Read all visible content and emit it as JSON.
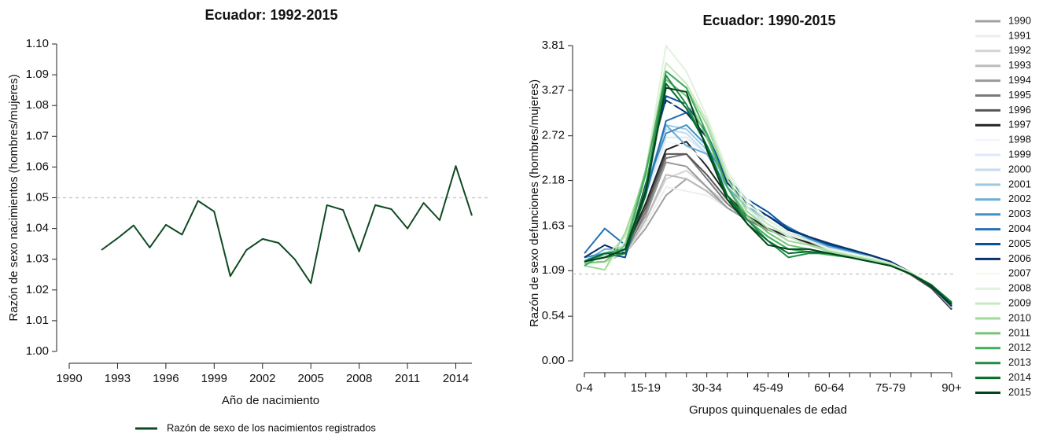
{
  "chart_data": [
    {
      "type": "line",
      "title": "Ecuador: 1992-2015",
      "x_label": "Año de nacimiento",
      "y_label": "Razón de sexo nacimientos (hombres/mujeres)",
      "x": [
        1992,
        1993,
        1994,
        1995,
        1996,
        1997,
        1998,
        1999,
        2000,
        2001,
        2002,
        2003,
        2004,
        2005,
        2006,
        2007,
        2008,
        2009,
        2010,
        2011,
        2012,
        2013,
        2014,
        2015
      ],
      "series": [
        {
          "name": "Razón de sexo de los nacimientos registrados",
          "color": "#0e4a22",
          "values": [
            1.033,
            1.0368,
            1.041,
            1.0338,
            1.0412,
            1.038,
            1.049,
            1.0455,
            1.0245,
            1.033,
            1.0366,
            1.0353,
            1.03,
            1.0222,
            1.0476,
            1.046,
            1.0325,
            1.0476,
            1.0463,
            1.04,
            1.0483,
            1.0427,
            1.0603,
            1.0442
          ]
        }
      ],
      "xlim": [
        1990,
        2015
      ],
      "xticks": [
        1990,
        1993,
        1996,
        1999,
        2002,
        2005,
        2008,
        2011,
        2014
      ],
      "ylim": [
        1,
        1.1
      ],
      "yticks": [
        {
          "value": 1,
          "label": "1.00"
        },
        1.01,
        1.02,
        1.03,
        1.04,
        1.05,
        1.06,
        1.07,
        1.08,
        1.09,
        {
          "value": 1.1,
          "label": "1.10"
        }
      ],
      "reference_line": 1.05,
      "legend": "bottom"
    },
    {
      "type": "line",
      "title": "Ecuador: 1990-2015",
      "x_label": "Grupos quinquenales de edad",
      "y_label": "Razón de sexo defunciones (hombres/mujeres)",
      "categories": [
        "0-4",
        null,
        null,
        "15-19",
        null,
        null,
        "30-34",
        null,
        null,
        "45-49",
        null,
        null,
        "60-64",
        null,
        null,
        "75-79",
        null,
        null,
        "90+"
      ],
      "ylim": [
        0,
        3.81
      ],
      "yticks": [
        {
          "value": 0,
          "label": "0.00"
        },
        0.54,
        1.09,
        1.63,
        2.18,
        2.72,
        3.27,
        3.81
      ],
      "reference_line": 1.05,
      "legend": "right",
      "series": [
        {
          "name": "1990",
          "color": "#a0a0a0",
          "values": [
            1.2,
            1.25,
            1.3,
            1.6,
            2.0,
            2.2,
            2.05,
            1.85,
            1.7,
            1.6,
            1.5,
            1.45,
            1.38,
            1.3,
            1.25,
            1.18,
            1.05,
            0.88,
            0.62
          ]
        },
        {
          "name": "1991",
          "color": "#eeeeee",
          "values": [
            1.15,
            1.2,
            1.3,
            1.65,
            2.1,
            2.05,
            2.0,
            1.85,
            1.7,
            1.6,
            1.5,
            1.42,
            1.35,
            1.3,
            1.25,
            1.18,
            1.05,
            0.88,
            0.63
          ]
        },
        {
          "name": "1992",
          "color": "#d4d4d4",
          "values": [
            1.2,
            1.25,
            1.35,
            1.7,
            2.2,
            2.3,
            2.1,
            1.9,
            1.72,
            1.6,
            1.5,
            1.42,
            1.36,
            1.3,
            1.24,
            1.17,
            1.05,
            0.9,
            0.65
          ]
        },
        {
          "name": "1993",
          "color": "#bbbbbb",
          "values": [
            1.18,
            1.2,
            1.3,
            1.7,
            2.25,
            2.2,
            2.05,
            1.85,
            1.7,
            1.58,
            1.5,
            1.44,
            1.36,
            1.3,
            1.25,
            1.16,
            1.04,
            0.88,
            0.62
          ]
        },
        {
          "name": "1994",
          "color": "#999999",
          "values": [
            1.2,
            1.25,
            1.35,
            1.75,
            2.4,
            2.35,
            2.1,
            1.85,
            1.7,
            1.58,
            1.5,
            1.42,
            1.35,
            1.3,
            1.24,
            1.16,
            1.04,
            0.88,
            0.64
          ]
        },
        {
          "name": "1995",
          "color": "#7a7a7a",
          "values": [
            1.2,
            1.25,
            1.3,
            1.8,
            2.45,
            2.5,
            2.2,
            1.9,
            1.7,
            1.6,
            1.5,
            1.42,
            1.36,
            1.3,
            1.24,
            1.18,
            1.05,
            0.88,
            0.63
          ]
        },
        {
          "name": "1996",
          "color": "#555555",
          "values": [
            1.22,
            1.28,
            1.35,
            1.85,
            2.5,
            2.5,
            2.25,
            1.95,
            1.75,
            1.6,
            1.5,
            1.45,
            1.38,
            1.3,
            1.25,
            1.18,
            1.04,
            0.88,
            0.62
          ]
        },
        {
          "name": "1997",
          "color": "#222222",
          "values": [
            1.2,
            1.25,
            1.35,
            1.9,
            2.55,
            2.65,
            2.35,
            2.0,
            1.75,
            1.6,
            1.5,
            1.43,
            1.37,
            1.3,
            1.25,
            1.17,
            1.05,
            0.89,
            0.63
          ]
        },
        {
          "name": "1998",
          "color": "#f2f7fd",
          "values": [
            1.2,
            1.3,
            1.4,
            1.95,
            2.65,
            2.6,
            2.4,
            2.05,
            1.8,
            1.65,
            1.52,
            1.45,
            1.37,
            1.3,
            1.25,
            1.18,
            1.05,
            0.9,
            0.65
          ]
        },
        {
          "name": "1999",
          "color": "#dde9f6",
          "values": [
            1.22,
            1.3,
            1.4,
            2.0,
            2.7,
            2.7,
            2.5,
            2.1,
            1.8,
            1.65,
            1.52,
            1.45,
            1.37,
            1.3,
            1.25,
            1.18,
            1.05,
            0.9,
            0.64
          ]
        },
        {
          "name": "2000",
          "color": "#c6dbef",
          "values": [
            1.2,
            1.28,
            1.35,
            2.0,
            2.8,
            2.75,
            2.5,
            2.1,
            1.85,
            1.7,
            1.55,
            1.45,
            1.38,
            1.32,
            1.26,
            1.18,
            1.05,
            0.9,
            0.65
          ]
        },
        {
          "name": "2001",
          "color": "#9ecae1",
          "values": [
            1.25,
            1.3,
            1.4,
            2.1,
            2.85,
            2.8,
            2.55,
            2.1,
            1.85,
            1.7,
            1.55,
            1.47,
            1.38,
            1.32,
            1.25,
            1.2,
            1.06,
            0.9,
            0.66
          ]
        },
        {
          "name": "2002",
          "color": "#6baed6",
          "values": [
            1.2,
            1.35,
            1.35,
            2.05,
            2.85,
            2.6,
            2.5,
            2.1,
            1.85,
            1.75,
            1.6,
            1.48,
            1.38,
            1.33,
            1.26,
            1.2,
            1.06,
            0.9,
            0.66
          ]
        },
        {
          "name": "2003",
          "color": "#4292c6",
          "values": [
            1.25,
            1.3,
            1.3,
            2.1,
            2.75,
            2.85,
            2.6,
            2.15,
            1.9,
            1.75,
            1.62,
            1.48,
            1.4,
            1.33,
            1.28,
            1.2,
            1.06,
            0.9,
            0.66
          ]
        },
        {
          "name": "2004",
          "color": "#2171b5",
          "values": [
            1.3,
            1.6,
            1.4,
            2.0,
            2.9,
            3.0,
            2.7,
            2.15,
            1.9,
            1.75,
            1.6,
            1.5,
            1.4,
            1.34,
            1.28,
            1.2,
            1.06,
            0.9,
            0.67
          ]
        },
        {
          "name": "2005",
          "color": "#08519c",
          "values": [
            1.2,
            1.3,
            1.25,
            2.1,
            3.2,
            3.1,
            2.75,
            2.2,
            1.95,
            1.8,
            1.6,
            1.5,
            1.4,
            1.35,
            1.28,
            1.2,
            1.06,
            0.9,
            0.66
          ]
        },
        {
          "name": "2006",
          "color": "#08306b",
          "values": [
            1.25,
            1.4,
            1.3,
            2.15,
            3.15,
            3.0,
            2.7,
            2.15,
            1.9,
            1.75,
            1.58,
            1.5,
            1.42,
            1.35,
            1.28,
            1.2,
            1.07,
            0.9,
            0.66
          ]
        },
        {
          "name": "2007",
          "color": "#f5fbf3",
          "values": [
            1.15,
            1.2,
            1.35,
            2.2,
            3.1,
            3.1,
            2.9,
            2.3,
            1.95,
            1.7,
            1.55,
            1.45,
            1.35,
            1.3,
            1.25,
            1.18,
            1.07,
            0.92,
            0.68
          ]
        },
        {
          "name": "2008",
          "color": "#e0f3db",
          "values": [
            1.15,
            1.1,
            1.45,
            2.3,
            3.81,
            3.5,
            2.95,
            2.3,
            1.9,
            1.7,
            1.55,
            1.45,
            1.35,
            1.28,
            1.24,
            1.18,
            1.07,
            0.92,
            0.7
          ]
        },
        {
          "name": "2009",
          "color": "#c7e9c0",
          "values": [
            1.2,
            1.25,
            1.5,
            2.3,
            3.6,
            3.35,
            2.9,
            2.25,
            1.85,
            1.65,
            1.5,
            1.4,
            1.33,
            1.28,
            1.23,
            1.17,
            1.06,
            0.92,
            0.7
          ]
        },
        {
          "name": "2010",
          "color": "#a1d99b",
          "values": [
            1.15,
            1.1,
            1.55,
            2.25,
            3.5,
            3.3,
            2.85,
            2.2,
            1.8,
            1.6,
            1.45,
            1.4,
            1.32,
            1.27,
            1.22,
            1.16,
            1.06,
            0.92,
            0.71
          ]
        },
        {
          "name": "2011",
          "color": "#74c476",
          "values": [
            1.18,
            1.2,
            1.4,
            2.3,
            3.4,
            3.2,
            2.7,
            2.1,
            1.75,
            1.55,
            1.4,
            1.35,
            1.3,
            1.25,
            1.2,
            1.15,
            1.05,
            0.92,
            0.7
          ]
        },
        {
          "name": "2012",
          "color": "#41ab5d",
          "values": [
            1.15,
            1.3,
            1.35,
            2.25,
            3.5,
            3.3,
            2.75,
            2.1,
            1.7,
            1.5,
            1.35,
            1.32,
            1.28,
            1.25,
            1.2,
            1.15,
            1.05,
            0.92,
            0.7
          ]
        },
        {
          "name": "2013",
          "color": "#238b45",
          "values": [
            1.2,
            1.25,
            1.3,
            2.1,
            3.45,
            3.1,
            2.6,
            2.0,
            1.7,
            1.45,
            1.25,
            1.3,
            1.3,
            1.25,
            1.2,
            1.15,
            1.05,
            0.92,
            0.71
          ]
        },
        {
          "name": "2014",
          "color": "#006d2c",
          "values": [
            1.2,
            1.3,
            1.3,
            2.0,
            3.35,
            3.05,
            2.6,
            2.0,
            1.65,
            1.45,
            1.3,
            1.32,
            1.3,
            1.25,
            1.2,
            1.15,
            1.05,
            0.92,
            0.69
          ]
        },
        {
          "name": "2015",
          "color": "#00441b",
          "values": [
            1.2,
            1.25,
            1.35,
            2.05,
            3.3,
            3.25,
            2.55,
            1.95,
            1.65,
            1.4,
            1.35,
            1.35,
            1.3,
            1.25,
            1.2,
            1.15,
            1.05,
            0.9,
            0.68
          ]
        }
      ]
    }
  ]
}
